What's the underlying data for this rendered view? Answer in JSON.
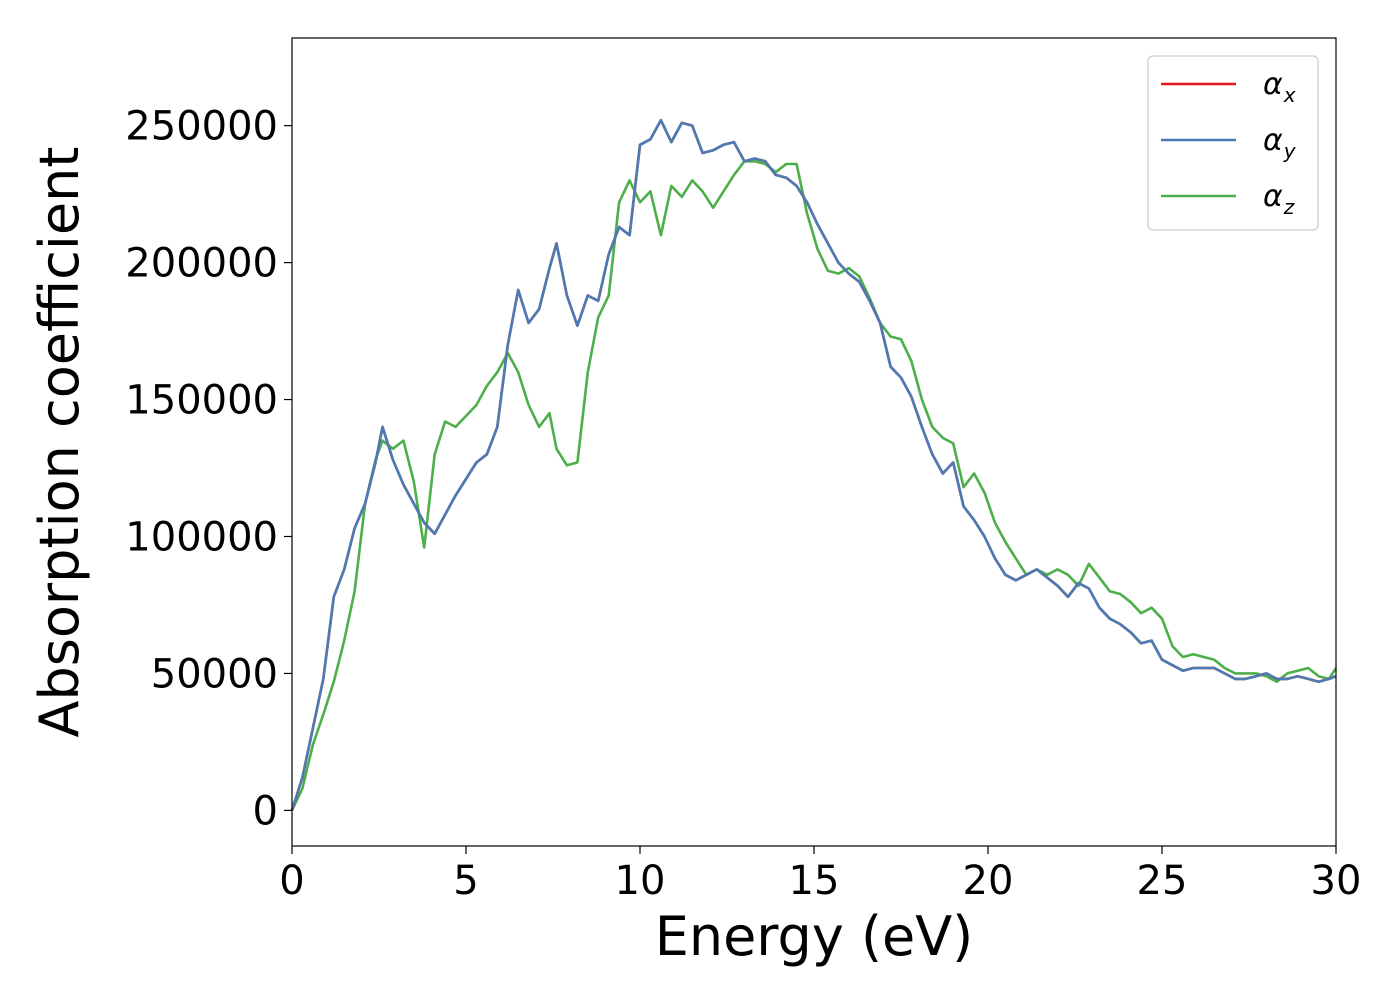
{
  "chart_data": {
    "type": "line",
    "title": "",
    "xlabel": "Energy (eV)",
    "ylabel": "Absorption coefficient",
    "xlim": [
      0,
      30
    ],
    "ylim": [
      -13000,
      282000
    ],
    "xticks": [
      0,
      5,
      10,
      15,
      20,
      25,
      30
    ],
    "xtick_labels": [
      "0",
      "5",
      "10",
      "15",
      "20",
      "25",
      "30"
    ],
    "yticks": [
      0,
      50000,
      100000,
      150000,
      200000,
      250000
    ],
    "ytick_labels": [
      "0",
      "50000",
      "100000",
      "150000",
      "200000",
      "250000"
    ],
    "grid": false,
    "legend_position": "top-right",
    "series": [
      {
        "name": "α_x",
        "legend_symbol": "α",
        "legend_sub": "x",
        "color": "#e41a1c",
        "x": [
          0,
          0.3,
          0.6,
          0.9,
          1.2,
          1.5,
          1.8,
          2.1,
          2.4,
          2.6,
          2.9,
          3.2,
          3.5,
          3.8,
          4.1,
          4.4,
          4.7,
          5.0,
          5.3,
          5.6,
          5.9,
          6.2,
          6.5,
          6.8,
          7.1,
          7.4,
          7.6,
          7.9,
          8.2,
          8.5,
          8.8,
          9.1,
          9.4,
          9.7,
          10.0,
          10.3,
          10.6,
          10.9,
          11.2,
          11.5,
          11.8,
          12.1,
          12.4,
          12.7,
          13.0,
          13.3,
          13.6,
          13.9,
          14.2,
          14.5,
          14.8,
          15.1,
          15.4,
          15.7,
          16.0,
          16.3,
          16.6,
          16.9,
          17.2,
          17.5,
          17.8,
          18.1,
          18.4,
          18.7,
          19.0,
          19.3,
          19.6,
          19.9,
          20.2,
          20.5,
          20.8,
          21.1,
          21.4,
          21.7,
          22.0,
          22.3,
          22.6,
          22.9,
          23.2,
          23.5,
          23.8,
          24.1,
          24.4,
          24.7,
          25.0,
          25.3,
          25.6,
          25.9,
          26.2,
          26.5,
          26.8,
          27.1,
          27.4,
          27.7,
          28.0,
          28.3,
          28.6,
          28.9,
          29.2,
          29.5,
          29.8,
          30.0
        ],
        "values": [
          0,
          12000,
          30000,
          48000,
          78000,
          88000,
          103000,
          112000,
          127000,
          140000,
          128000,
          119000,
          112000,
          105000,
          101000,
          108000,
          115000,
          121000,
          127000,
          130000,
          140000,
          170000,
          190000,
          178000,
          183000,
          198000,
          207000,
          188000,
          177000,
          188000,
          186000,
          203000,
          213000,
          210000,
          243000,
          245000,
          252000,
          244000,
          251000,
          250000,
          240000,
          241000,
          243000,
          244000,
          237000,
          238000,
          237000,
          232000,
          231000,
          228000,
          222000,
          214000,
          207000,
          200000,
          196000,
          193000,
          186000,
          178000,
          162000,
          158000,
          151000,
          140000,
          130000,
          123000,
          127000,
          111000,
          106000,
          100000,
          92000,
          86000,
          84000,
          86000,
          88000,
          85000,
          82000,
          78000,
          83000,
          81000,
          74000,
          70000,
          68000,
          65000,
          61000,
          62000,
          55000,
          53000,
          51000,
          52000,
          52000,
          52000,
          50000,
          48000,
          48000,
          49000,
          50000,
          48000,
          48000,
          49000,
          48000,
          47000,
          48000,
          49000
        ]
      },
      {
        "name": "α_y",
        "legend_symbol": "α",
        "legend_sub": "y",
        "color": "#4a7bb5",
        "x": [
          0,
          0.3,
          0.6,
          0.9,
          1.2,
          1.5,
          1.8,
          2.1,
          2.4,
          2.6,
          2.9,
          3.2,
          3.5,
          3.8,
          4.1,
          4.4,
          4.7,
          5.0,
          5.3,
          5.6,
          5.9,
          6.2,
          6.5,
          6.8,
          7.1,
          7.4,
          7.6,
          7.9,
          8.2,
          8.5,
          8.8,
          9.1,
          9.4,
          9.7,
          10.0,
          10.3,
          10.6,
          10.9,
          11.2,
          11.5,
          11.8,
          12.1,
          12.4,
          12.7,
          13.0,
          13.3,
          13.6,
          13.9,
          14.2,
          14.5,
          14.8,
          15.1,
          15.4,
          15.7,
          16.0,
          16.3,
          16.6,
          16.9,
          17.2,
          17.5,
          17.8,
          18.1,
          18.4,
          18.7,
          19.0,
          19.3,
          19.6,
          19.9,
          20.2,
          20.5,
          20.8,
          21.1,
          21.4,
          21.7,
          22.0,
          22.3,
          22.6,
          22.9,
          23.2,
          23.5,
          23.8,
          24.1,
          24.4,
          24.7,
          25.0,
          25.3,
          25.6,
          25.9,
          26.2,
          26.5,
          26.8,
          27.1,
          27.4,
          27.7,
          28.0,
          28.3,
          28.6,
          28.9,
          29.2,
          29.5,
          29.8,
          30.0
        ],
        "values": [
          0,
          12000,
          30000,
          48000,
          78000,
          88000,
          103000,
          112000,
          127000,
          140000,
          128000,
          119000,
          112000,
          105000,
          101000,
          108000,
          115000,
          121000,
          127000,
          130000,
          140000,
          170000,
          190000,
          178000,
          183000,
          198000,
          207000,
          188000,
          177000,
          188000,
          186000,
          203000,
          213000,
          210000,
          243000,
          245000,
          252000,
          244000,
          251000,
          250000,
          240000,
          241000,
          243000,
          244000,
          237000,
          238000,
          237000,
          232000,
          231000,
          228000,
          222000,
          214000,
          207000,
          200000,
          196000,
          193000,
          186000,
          178000,
          162000,
          158000,
          151000,
          140000,
          130000,
          123000,
          127000,
          111000,
          106000,
          100000,
          92000,
          86000,
          84000,
          86000,
          88000,
          85000,
          82000,
          78000,
          83000,
          81000,
          74000,
          70000,
          68000,
          65000,
          61000,
          62000,
          55000,
          53000,
          51000,
          52000,
          52000,
          52000,
          50000,
          48000,
          48000,
          49000,
          50000,
          48000,
          48000,
          49000,
          48000,
          47000,
          48000,
          49000
        ]
      },
      {
        "name": "α_z",
        "legend_symbol": "α",
        "legend_sub": "z",
        "color": "#4daf4a",
        "x": [
          0,
          0.3,
          0.6,
          0.9,
          1.2,
          1.5,
          1.8,
          2.1,
          2.4,
          2.6,
          2.9,
          3.2,
          3.5,
          3.8,
          4.1,
          4.4,
          4.7,
          5.0,
          5.3,
          5.6,
          5.9,
          6.2,
          6.5,
          6.8,
          7.1,
          7.4,
          7.6,
          7.9,
          8.2,
          8.5,
          8.8,
          9.1,
          9.4,
          9.7,
          10.0,
          10.3,
          10.6,
          10.9,
          11.2,
          11.5,
          11.8,
          12.1,
          12.4,
          12.7,
          13.0,
          13.3,
          13.6,
          13.9,
          14.2,
          14.5,
          14.8,
          15.1,
          15.4,
          15.7,
          16.0,
          16.3,
          16.6,
          16.9,
          17.2,
          17.5,
          17.8,
          18.1,
          18.4,
          18.7,
          19.0,
          19.3,
          19.6,
          19.9,
          20.2,
          20.5,
          20.8,
          21.1,
          21.4,
          21.7,
          22.0,
          22.3,
          22.6,
          22.9,
          23.2,
          23.5,
          23.8,
          24.1,
          24.4,
          24.7,
          25.0,
          25.3,
          25.6,
          25.9,
          26.2,
          26.5,
          26.8,
          27.1,
          27.4,
          27.7,
          28.0,
          28.3,
          28.6,
          28.9,
          29.2,
          29.5,
          29.8,
          30.0
        ],
        "values": [
          0,
          8000,
          24000,
          35000,
          47000,
          62000,
          80000,
          112000,
          128000,
          135000,
          132000,
          135000,
          120000,
          96000,
          130000,
          142000,
          140000,
          144000,
          148000,
          155000,
          160000,
          167000,
          160000,
          148000,
          140000,
          145000,
          132000,
          126000,
          127000,
          160000,
          180000,
          188000,
          222000,
          230000,
          222000,
          226000,
          210000,
          228000,
          224000,
          230000,
          226000,
          220000,
          226000,
          232000,
          237000,
          237000,
          236000,
          233000,
          236000,
          236000,
          218000,
          205000,
          197000,
          196000,
          198000,
          195000,
          187000,
          178000,
          173000,
          172000,
          164000,
          150000,
          140000,
          136000,
          134000,
          118000,
          123000,
          116000,
          105000,
          98000,
          92000,
          86000,
          88000,
          86000,
          88000,
          86000,
          82000,
          90000,
          85000,
          80000,
          79000,
          76000,
          72000,
          74000,
          70000,
          60000,
          56000,
          57000,
          56000,
          55000,
          52000,
          50000,
          50000,
          50000,
          49000,
          47000,
          50000,
          51000,
          52000,
          49000,
          48000,
          52000
        ]
      }
    ]
  }
}
